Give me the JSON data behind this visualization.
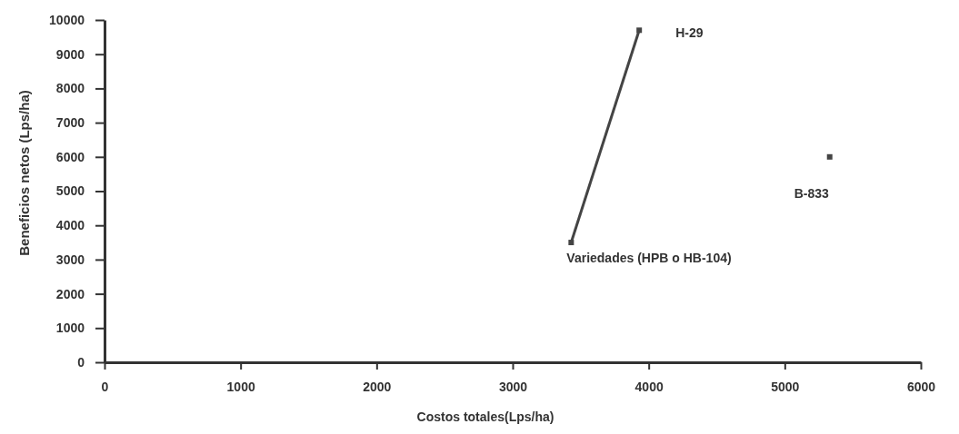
{
  "chart_data": {
    "type": "line",
    "xlabel": "Costos totales(Lps/ha)",
    "ylabel": "Beneficios netos (Lps/ha)",
    "xlim": [
      0,
      6000
    ],
    "xticks": [
      0,
      1000,
      2000,
      3000,
      4000,
      5000,
      6000
    ],
    "ylim": [
      0,
      10000
    ],
    "yticks": [
      0,
      1000,
      2000,
      3000,
      4000,
      5000,
      6000,
      7000,
      8000,
      9000,
      10000
    ],
    "grid": false,
    "marker": "square",
    "line_style": "solid",
    "series": [
      {
        "color": "#444444",
        "x": [
          3430,
          3930
        ],
        "values": [
          3500,
          9700
        ]
      },
      {
        "type": "scatter",
        "color": "#444444",
        "x": [
          5330
        ],
        "values": [
          6000
        ]
      }
    ],
    "annotations": [
      {
        "text": "Variedades (HPB o HB-104)",
        "x": 3430,
        "y": 3500
      },
      {
        "text": "H-29",
        "x": 3930,
        "y": 9700
      },
      {
        "text": "B-833",
        "x": 5330,
        "y": 6000
      }
    ]
  }
}
